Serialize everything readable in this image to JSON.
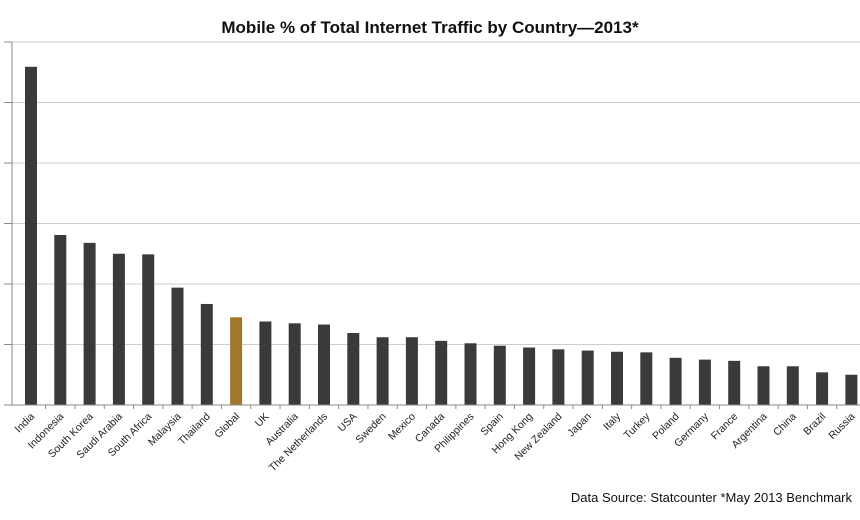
{
  "chart_data": {
    "type": "bar",
    "title": "Mobile % of Total Internet Traffic by Country—2013*",
    "xlabel": "",
    "ylabel": "",
    "ylim": [
      0,
      60
    ],
    "y_ticks": [
      0,
      10,
      20,
      30,
      40,
      50,
      60
    ],
    "grid": true,
    "legend": "none",
    "categories": [
      "India",
      "Indonesia",
      "South Korea",
      "Saudi Arabia",
      "South Africa",
      "Malaysia",
      "Thailand",
      "Global",
      "UK",
      "Australia",
      "The Netherlands",
      "USA",
      "Sweden",
      "Mexico",
      "Canada",
      "Philippines",
      "Spain",
      "Hong Kong",
      "New Zealand",
      "Japan",
      "Italy",
      "Turkey",
      "Poland",
      "Germany",
      "France",
      "Argentina",
      "China",
      "Brazil",
      "Russia"
    ],
    "values": [
      55.9,
      28.1,
      26.8,
      25.0,
      24.9,
      19.4,
      16.7,
      14.5,
      13.8,
      13.5,
      13.3,
      11.9,
      11.2,
      11.2,
      10.6,
      10.2,
      9.8,
      9.5,
      9.2,
      9.0,
      8.8,
      8.7,
      7.8,
      7.5,
      7.3,
      6.4,
      6.4,
      5.4,
      5.0
    ],
    "highlight_category": "Global",
    "colors": {
      "bar": "#3a3a3c",
      "highlight": "#a0782c",
      "grid": "#cccccc",
      "axis": "#888888"
    },
    "source_note": "Data Source: Statcounter *May 2013 Benchmark"
  }
}
